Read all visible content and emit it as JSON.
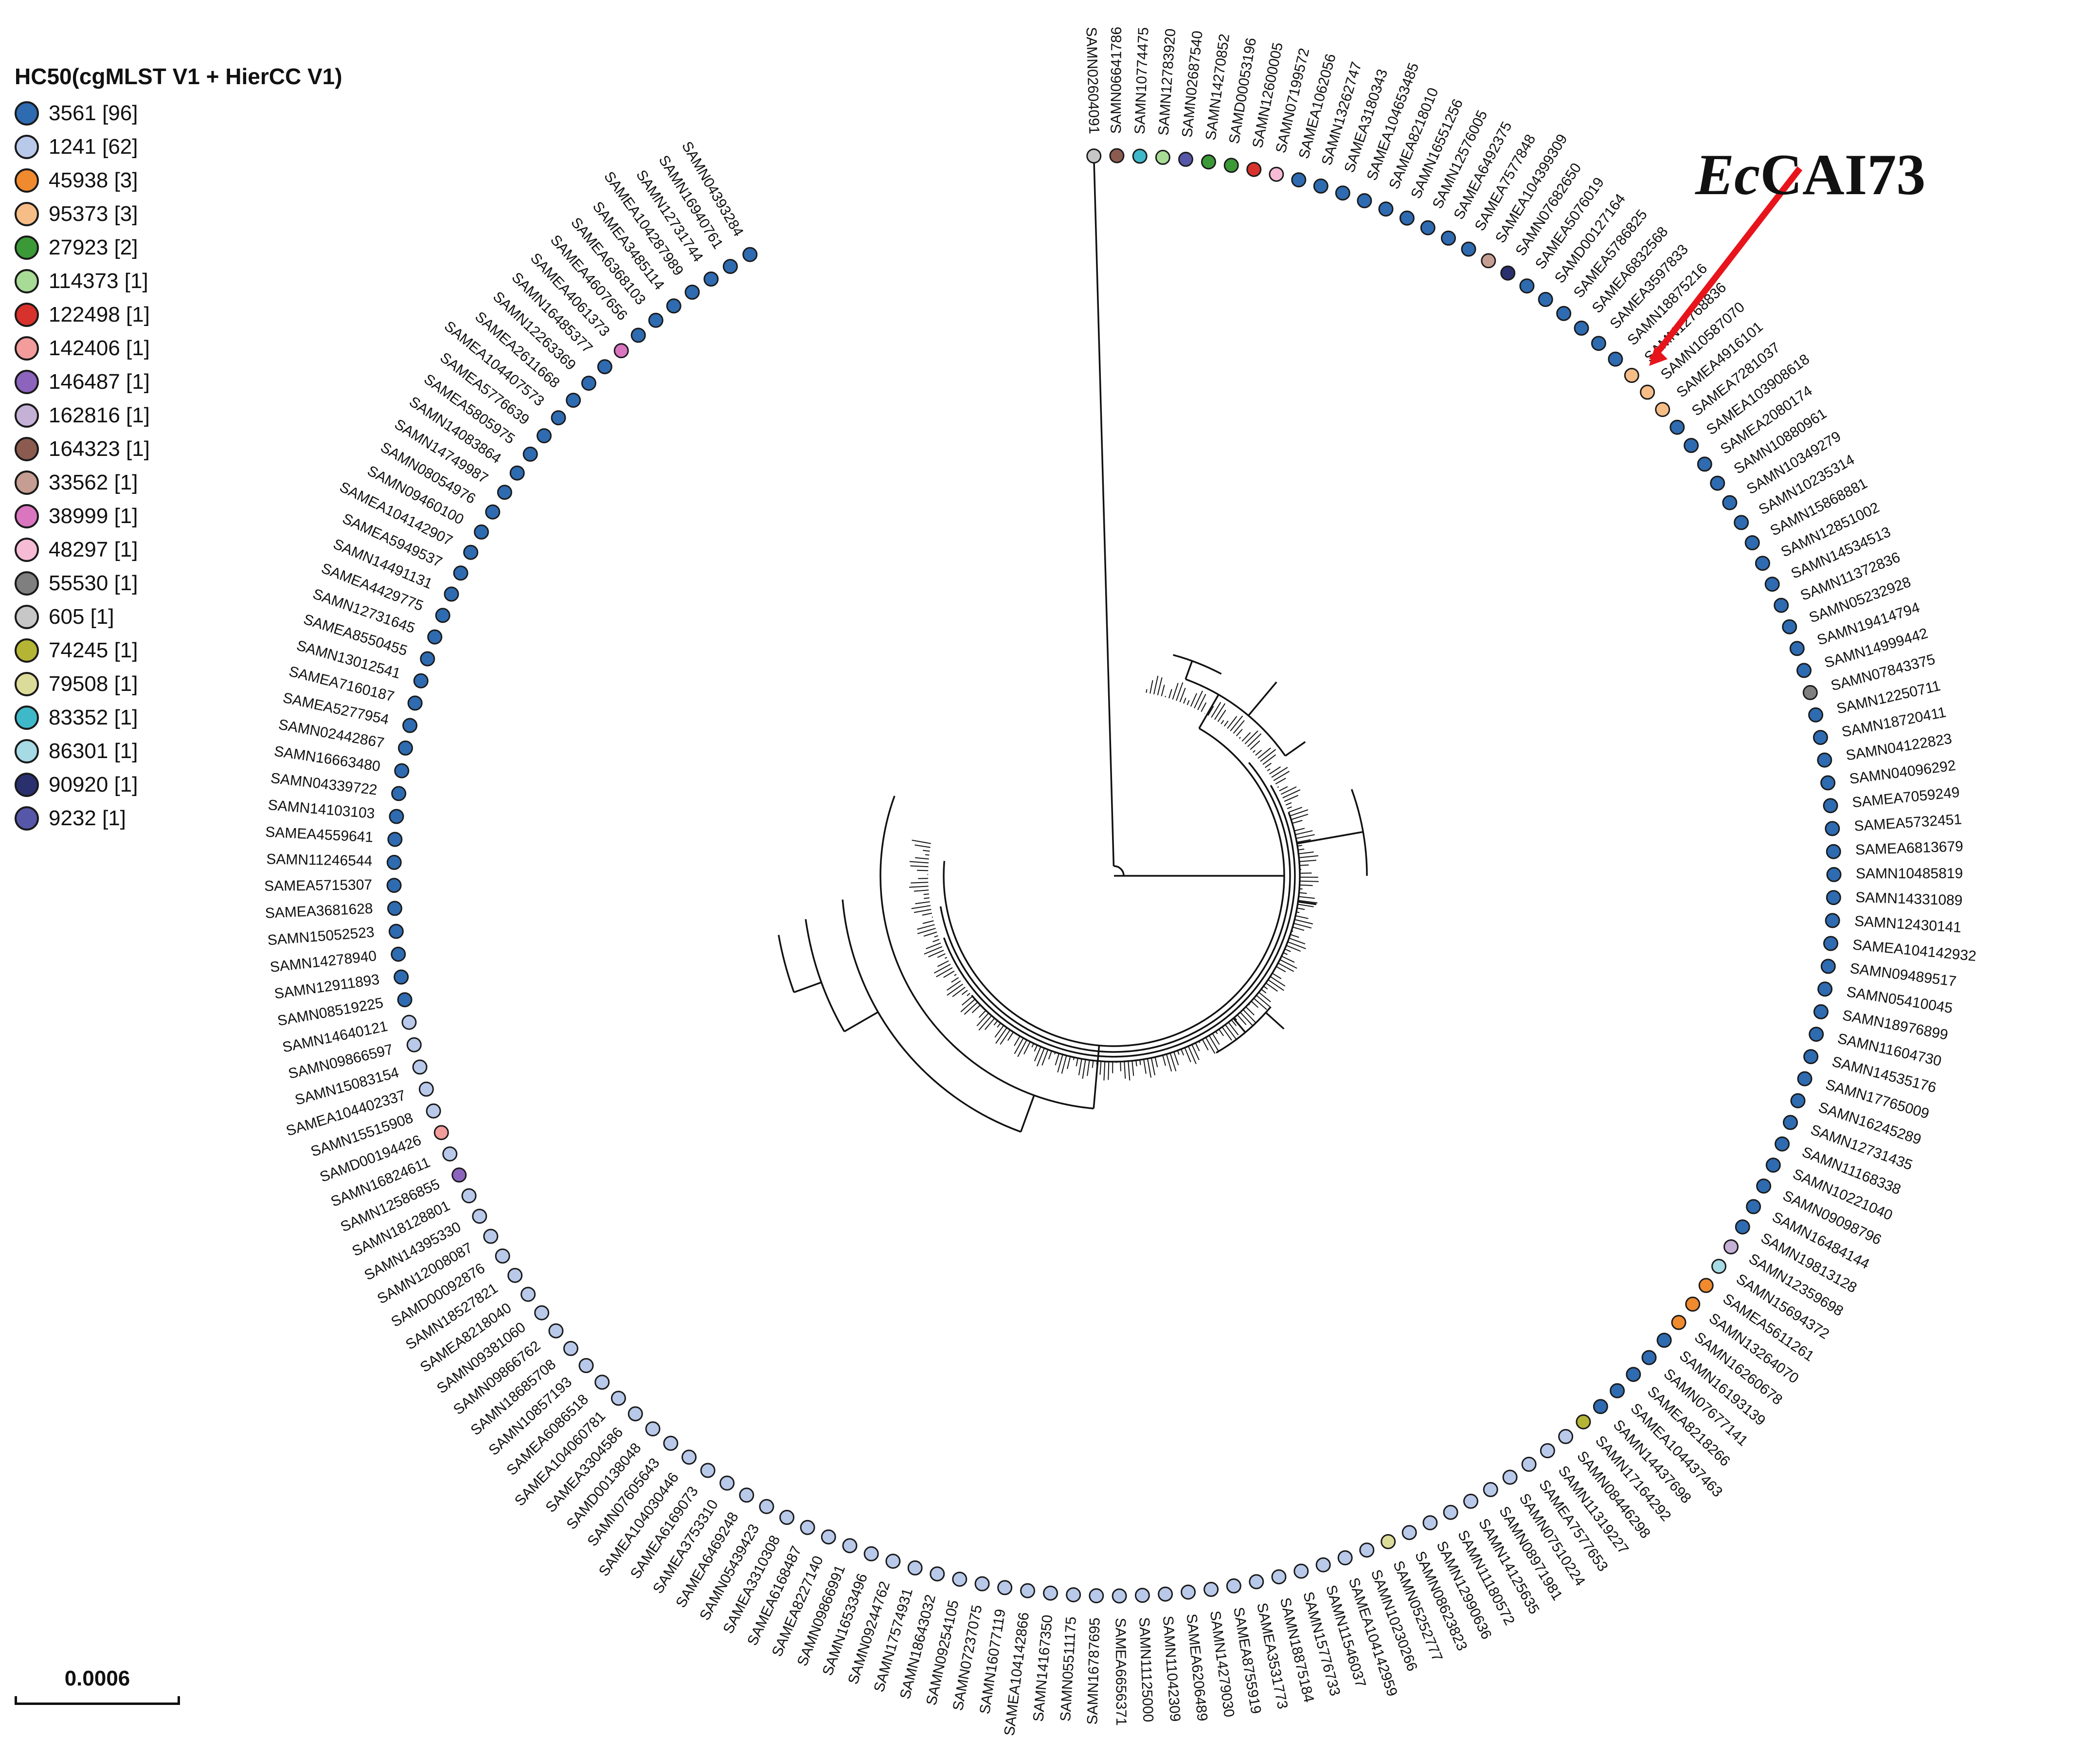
{
  "legend": {
    "title": "HC50(cgMLST V1 + HierCC V1)",
    "items": [
      {
        "label": "3561 [96]",
        "color": "#2e6bb0"
      },
      {
        "label": "1241 [62]",
        "color": "#b9c9ea"
      },
      {
        "label": "45938 [3]",
        "color": "#f08a2e"
      },
      {
        "label": "95373 [3]",
        "color": "#f6bd87"
      },
      {
        "label": "27923 [2]",
        "color": "#3b9a37"
      },
      {
        "label": "114373 [1]",
        "color": "#a8db95"
      },
      {
        "label": "122498 [1]",
        "color": "#d8322d"
      },
      {
        "label": "142406 [1]",
        "color": "#f39c9c"
      },
      {
        "label": "146487 [1]",
        "color": "#8c64bd"
      },
      {
        "label": "162816 [1]",
        "color": "#c5b1d6"
      },
      {
        "label": "164323 [1]",
        "color": "#8c5b4f"
      },
      {
        "label": "33562 [1]",
        "color": "#c59d92"
      },
      {
        "label": "38999 [1]",
        "color": "#da75c0"
      },
      {
        "label": "48297 [1]",
        "color": "#f6bcd6"
      },
      {
        "label": "55530 [1]",
        "color": "#7f7f7f"
      },
      {
        "label": "605 [1]",
        "color": "#c7c7c7"
      },
      {
        "label": "74245 [1]",
        "color": "#b5b535"
      },
      {
        "label": "79508 [1]",
        "color": "#dcdc9a"
      },
      {
        "label": "83352 [1]",
        "color": "#3fb9c9"
      },
      {
        "label": "86301 [1]",
        "color": "#a6dae5"
      },
      {
        "label": "90920 [1]",
        "color": "#2a2f6e"
      },
      {
        "label": "9232 [1]",
        "color": "#5657a8"
      }
    ]
  },
  "scale_bar": {
    "label": "0.0006"
  },
  "callout": {
    "prefix": "Ec",
    "suffix": "CAI73"
  },
  "tree": {
    "leaves": [
      {
        "id": "SAMN02604091",
        "hc": "605 [1]"
      },
      {
        "id": "SAMN06641786",
        "hc": "164323 [1]"
      },
      {
        "id": "SAMN10774475",
        "hc": "83352 [1]"
      },
      {
        "id": "SAMN12783920",
        "hc": "114373 [1]"
      },
      {
        "id": "SAMN02687540",
        "hc": "9232 [1]"
      },
      {
        "id": "SAMN14270852",
        "hc": "27923 [2]"
      },
      {
        "id": "SAMD00053196",
        "hc": "27923 [2]"
      },
      {
        "id": "SAMN12600005",
        "hc": "122498 [1]"
      },
      {
        "id": "SAMN07199572",
        "hc": "48297 [1]"
      },
      {
        "id": "SAMEA1062056",
        "hc": "3561 [96]"
      },
      {
        "id": "SAMN13262747",
        "hc": "3561 [96]"
      },
      {
        "id": "SAMEA3180343",
        "hc": "3561 [96]"
      },
      {
        "id": "SAMEA104653485",
        "hc": "3561 [96]"
      },
      {
        "id": "SAMEA8218010",
        "hc": "3561 [96]"
      },
      {
        "id": "SAMN16551256",
        "hc": "3561 [96]"
      },
      {
        "id": "SAMN12576005",
        "hc": "3561 [96]"
      },
      {
        "id": "SAMEA6492375",
        "hc": "3561 [96]"
      },
      {
        "id": "SAMEA7577848",
        "hc": "3561 [96]"
      },
      {
        "id": "SAMEA104399309",
        "hc": "33562 [1]"
      },
      {
        "id": "SAMN07682650",
        "hc": "90920 [1]"
      },
      {
        "id": "SAMEA5076019",
        "hc": "3561 [96]"
      },
      {
        "id": "SAMD00127164",
        "hc": "3561 [96]"
      },
      {
        "id": "SAMEA5786825",
        "hc": "3561 [96]"
      },
      {
        "id": "SAMEA6832568",
        "hc": "3561 [96]"
      },
      {
        "id": "SAMEA3597833",
        "hc": "3561 [96]"
      },
      {
        "id": "SAMN18875216",
        "hc": "3561 [96]"
      },
      {
        "id": "SAMN12768836",
        "hc": "95373 [3]"
      },
      {
        "id": "SAMN10587070",
        "hc": "95373 [3]"
      },
      {
        "id": "SAMEA4916101",
        "hc": "95373 [3]"
      },
      {
        "id": "SAMEA7281037",
        "hc": "3561 [96]"
      },
      {
        "id": "SAMEA103908618",
        "hc": "3561 [96]"
      },
      {
        "id": "SAMEA2080174",
        "hc": "3561 [96]"
      },
      {
        "id": "SAMN10880961",
        "hc": "3561 [96]"
      },
      {
        "id": "SAMN10349279",
        "hc": "3561 [96]"
      },
      {
        "id": "SAMN10235314",
        "hc": "3561 [96]"
      },
      {
        "id": "SAMN15868881",
        "hc": "3561 [96]"
      },
      {
        "id": "SAMN12851002",
        "hc": "3561 [96]"
      },
      {
        "id": "SAMN14534513",
        "hc": "3561 [96]"
      },
      {
        "id": "SAMN11372836",
        "hc": "3561 [96]"
      },
      {
        "id": "SAMN05232928",
        "hc": "3561 [96]"
      },
      {
        "id": "SAMN19414794",
        "hc": "3561 [96]"
      },
      {
        "id": "SAMN14999442",
        "hc": "3561 [96]"
      },
      {
        "id": "SAMN07843375",
        "hc": "55530 [1]"
      },
      {
        "id": "SAMN12250711",
        "hc": "3561 [96]"
      },
      {
        "id": "SAMN18720411",
        "hc": "3561 [96]"
      },
      {
        "id": "SAMN04122823",
        "hc": "3561 [96]"
      },
      {
        "id": "SAMN04096292",
        "hc": "3561 [96]"
      },
      {
        "id": "SAMEA7059249",
        "hc": "3561 [96]"
      },
      {
        "id": "SAMEA5732451",
        "hc": "3561 [96]"
      },
      {
        "id": "SAMEA6813679",
        "hc": "3561 [96]"
      },
      {
        "id": "SAMN10485819",
        "hc": "3561 [96]"
      },
      {
        "id": "SAMN14331089",
        "hc": "3561 [96]"
      },
      {
        "id": "SAMN12430141",
        "hc": "3561 [96]"
      },
      {
        "id": "SAMEA104142932",
        "hc": "3561 [96]"
      },
      {
        "id": "SAMN09489517",
        "hc": "3561 [96]"
      },
      {
        "id": "SAMN05410045",
        "hc": "3561 [96]"
      },
      {
        "id": "SAMN18976899",
        "hc": "3561 [96]"
      },
      {
        "id": "SAMN11604730",
        "hc": "3561 [96]"
      },
      {
        "id": "SAMN14535176",
        "hc": "3561 [96]"
      },
      {
        "id": "SAMN17765009",
        "hc": "3561 [96]"
      },
      {
        "id": "SAMN16245289",
        "hc": "3561 [96]"
      },
      {
        "id": "SAMN12731435",
        "hc": "3561 [96]"
      },
      {
        "id": "SAMN11168338",
        "hc": "3561 [96]"
      },
      {
        "id": "SAMN10221040",
        "hc": "3561 [96]"
      },
      {
        "id": "SAMN09098796",
        "hc": "3561 [96]"
      },
      {
        "id": "SAMN16484144",
        "hc": "3561 [96]"
      },
      {
        "id": "SAMN19813128",
        "hc": "3561 [96]"
      },
      {
        "id": "SAMN12359698",
        "hc": "162816 [1]"
      },
      {
        "id": "SAMN15694372",
        "hc": "86301 [1]"
      },
      {
        "id": "SAMEA5611261",
        "hc": "45938 [3]"
      },
      {
        "id": "SAMN13264070",
        "hc": "45938 [3]"
      },
      {
        "id": "SAMN16260678",
        "hc": "45938 [3]"
      },
      {
        "id": "SAMN16193139",
        "hc": "3561 [96]"
      },
      {
        "id": "SAMN07677141",
        "hc": "3561 [96]"
      },
      {
        "id": "SAMEA8218266",
        "hc": "3561 [96]"
      },
      {
        "id": "SAMEA104437463",
        "hc": "3561 [96]"
      },
      {
        "id": "SAMN14437698",
        "hc": "3561 [96]"
      },
      {
        "id": "SAMN17164292",
        "hc": "74245 [1]"
      },
      {
        "id": "SAMN08446298",
        "hc": "1241 [62]"
      },
      {
        "id": "SAMN11319227",
        "hc": "1241 [62]"
      },
      {
        "id": "SAMEA7577653",
        "hc": "1241 [62]"
      },
      {
        "id": "SAMN07510224",
        "hc": "1241 [62]"
      },
      {
        "id": "SAMN08971981",
        "hc": "1241 [62]"
      },
      {
        "id": "SAMN14125635",
        "hc": "1241 [62]"
      },
      {
        "id": "SAMN11180572",
        "hc": "1241 [62]"
      },
      {
        "id": "SAMN12990636",
        "hc": "1241 [62]"
      },
      {
        "id": "SAMN08623823",
        "hc": "1241 [62]"
      },
      {
        "id": "SAMN05252777",
        "hc": "79508 [1]"
      },
      {
        "id": "SAMN10230266",
        "hc": "1241 [62]"
      },
      {
        "id": "SAMEA104142959",
        "hc": "1241 [62]"
      },
      {
        "id": "SAMN11546037",
        "hc": "1241 [62]"
      },
      {
        "id": "SAMN15776733",
        "hc": "1241 [62]"
      },
      {
        "id": "SAMN18875184",
        "hc": "1241 [62]"
      },
      {
        "id": "SAMEA3531773",
        "hc": "1241 [62]"
      },
      {
        "id": "SAMEA8755919",
        "hc": "1241 [62]"
      },
      {
        "id": "SAMN14279030",
        "hc": "1241 [62]"
      },
      {
        "id": "SAMEA6206489",
        "hc": "1241 [62]"
      },
      {
        "id": "SAMN11042309",
        "hc": "1241 [62]"
      },
      {
        "id": "SAMN11125000",
        "hc": "1241 [62]"
      },
      {
        "id": "SAMEA6656371",
        "hc": "1241 [62]"
      },
      {
        "id": "SAMN16787695",
        "hc": "1241 [62]"
      },
      {
        "id": "SAMN05511175",
        "hc": "1241 [62]"
      },
      {
        "id": "SAMN14167350",
        "hc": "1241 [62]"
      },
      {
        "id": "SAMEA104142866",
        "hc": "1241 [62]"
      },
      {
        "id": "SAMN16077119",
        "hc": "1241 [62]"
      },
      {
        "id": "SAMN07237075",
        "hc": "1241 [62]"
      },
      {
        "id": "SAMN09254105",
        "hc": "1241 [62]"
      },
      {
        "id": "SAMN18643032",
        "hc": "1241 [62]"
      },
      {
        "id": "SAMN17574931",
        "hc": "1241 [62]"
      },
      {
        "id": "SAMN09244762",
        "hc": "1241 [62]"
      },
      {
        "id": "SAMN16533496",
        "hc": "1241 [62]"
      },
      {
        "id": "SAMN09866991",
        "hc": "1241 [62]"
      },
      {
        "id": "SAMEA8227140",
        "hc": "1241 [62]"
      },
      {
        "id": "SAMEA6168487",
        "hc": "1241 [62]"
      },
      {
        "id": "SAMEA3310308",
        "hc": "1241 [62]"
      },
      {
        "id": "SAMN05439423",
        "hc": "1241 [62]"
      },
      {
        "id": "SAMEA6469248",
        "hc": "1241 [62]"
      },
      {
        "id": "SAMEA3753310",
        "hc": "1241 [62]"
      },
      {
        "id": "SAMEA6169073",
        "hc": "1241 [62]"
      },
      {
        "id": "SAMEA104030446",
        "hc": "1241 [62]"
      },
      {
        "id": "SAMN07605643",
        "hc": "1241 [62]"
      },
      {
        "id": "SAMD00138048",
        "hc": "1241 [62]"
      },
      {
        "id": "SAMEA3304586",
        "hc": "1241 [62]"
      },
      {
        "id": "SAMEA104060781",
        "hc": "1241 [62]"
      },
      {
        "id": "SAMEA6086518",
        "hc": "1241 [62]"
      },
      {
        "id": "SAMN10857193",
        "hc": "1241 [62]"
      },
      {
        "id": "SAMN18685708",
        "hc": "1241 [62]"
      },
      {
        "id": "SAMN09866762",
        "hc": "1241 [62]"
      },
      {
        "id": "SAMN09381060",
        "hc": "1241 [62]"
      },
      {
        "id": "SAMEA8218040",
        "hc": "1241 [62]"
      },
      {
        "id": "SAMN18527821",
        "hc": "1241 [62]"
      },
      {
        "id": "SAMD00092876",
        "hc": "1241 [62]"
      },
      {
        "id": "SAMN12008087",
        "hc": "1241 [62]"
      },
      {
        "id": "SAMN14395330",
        "hc": "1241 [62]"
      },
      {
        "id": "SAMN18128801",
        "hc": "1241 [62]"
      },
      {
        "id": "SAMN12586855",
        "hc": "146487 [1]"
      },
      {
        "id": "SAMN16824611",
        "hc": "1241 [62]"
      },
      {
        "id": "SAMD00194426",
        "hc": "142406 [1]"
      },
      {
        "id": "SAMN15515908",
        "hc": "1241 [62]"
      },
      {
        "id": "SAMEA104402337",
        "hc": "1241 [62]"
      },
      {
        "id": "SAMN15083154",
        "hc": "1241 [62]"
      },
      {
        "id": "SAMN09866597",
        "hc": "1241 [62]"
      },
      {
        "id": "SAMN14640121",
        "hc": "1241 [62]"
      },
      {
        "id": "SAMN08519225",
        "hc": "3561 [96]"
      },
      {
        "id": "SAMN12911893",
        "hc": "3561 [96]"
      },
      {
        "id": "SAMN14278940",
        "hc": "3561 [96]"
      },
      {
        "id": "SAMN15052523",
        "hc": "3561 [96]"
      },
      {
        "id": "SAMEA3681628",
        "hc": "3561 [96]"
      },
      {
        "id": "SAMEA5715307",
        "hc": "3561 [96]"
      },
      {
        "id": "SAMN11246544",
        "hc": "3561 [96]"
      },
      {
        "id": "SAMEA4559641",
        "hc": "3561 [96]"
      },
      {
        "id": "SAMN14103103",
        "hc": "3561 [96]"
      },
      {
        "id": "SAMN04339722",
        "hc": "3561 [96]"
      },
      {
        "id": "SAMN16663480",
        "hc": "3561 [96]"
      },
      {
        "id": "SAMN02442867",
        "hc": "3561 [96]"
      },
      {
        "id": "SAMEA5277954",
        "hc": "3561 [96]"
      },
      {
        "id": "SAMEA7160187",
        "hc": "3561 [96]"
      },
      {
        "id": "SAMN13012541",
        "hc": "3561 [96]"
      },
      {
        "id": "SAMEA8550455",
        "hc": "3561 [96]"
      },
      {
        "id": "SAMN12731645",
        "hc": "3561 [96]"
      },
      {
        "id": "SAMEA4429775",
        "hc": "3561 [96]"
      },
      {
        "id": "SAMN14491131",
        "hc": "3561 [96]"
      },
      {
        "id": "SAMEA5949537",
        "hc": "3561 [96]"
      },
      {
        "id": "SAMEA104142907",
        "hc": "3561 [96]"
      },
      {
        "id": "SAMN09460100",
        "hc": "3561 [96]"
      },
      {
        "id": "SAMN08054976",
        "hc": "3561 [96]"
      },
      {
        "id": "SAMN14749987",
        "hc": "3561 [96]"
      },
      {
        "id": "SAMN14083864",
        "hc": "3561 [96]"
      },
      {
        "id": "SAMEA5805975",
        "hc": "3561 [96]"
      },
      {
        "id": "SAMEA5776639",
        "hc": "3561 [96]"
      },
      {
        "id": "SAMEA104407573",
        "hc": "3561 [96]"
      },
      {
        "id": "SAMEA2611668",
        "hc": "3561 [96]"
      },
      {
        "id": "SAMN12263369",
        "hc": "3561 [96]"
      },
      {
        "id": "SAMN16485377",
        "hc": "3561 [96]"
      },
      {
        "id": "SAMEA4061373",
        "hc": "38999 [1]"
      },
      {
        "id": "SAMEA4607656",
        "hc": "3561 [96]"
      },
      {
        "id": "SAMEA6368103",
        "hc": "3561 [96]"
      },
      {
        "id": "SAMEA3485114",
        "hc": "3561 [96]"
      },
      {
        "id": "SAMEA104287989",
        "hc": "3561 [96]"
      },
      {
        "id": "SAMN12731744",
        "hc": "3561 [96]"
      },
      {
        "id": "SAMN16940761",
        "hc": "3561 [96]"
      },
      {
        "id": "SAMN04393284",
        "hc": "3561 [96]"
      }
    ]
  }
}
